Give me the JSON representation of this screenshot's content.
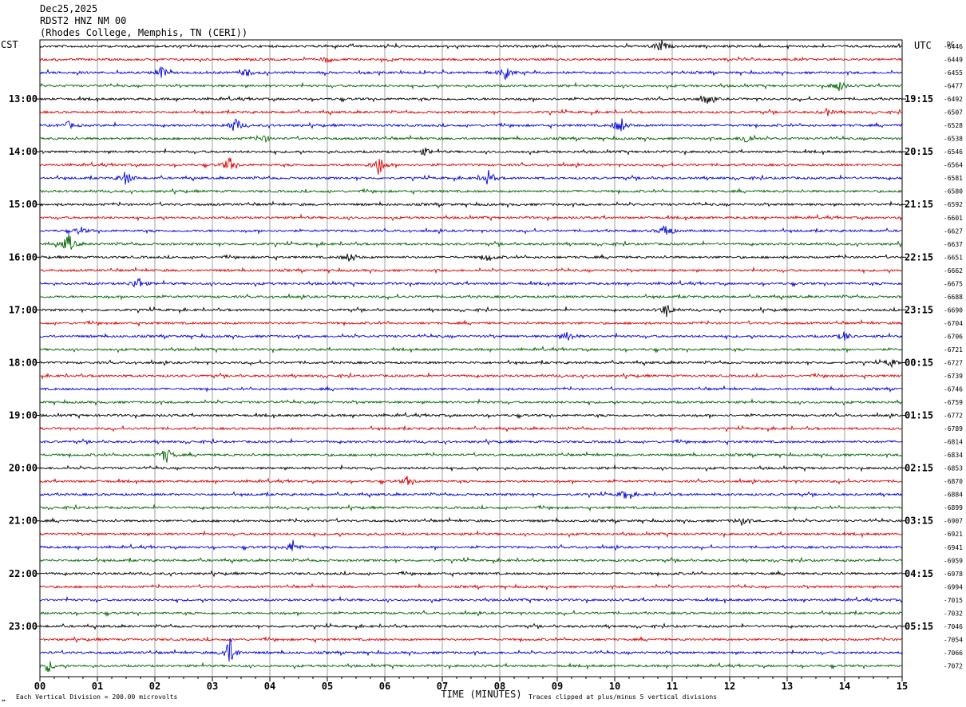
{
  "header": {
    "date": "Dec25,2025",
    "station": "RDST2 HNZ NM 00",
    "location": "(Rhodes College, Memphis, TN (CERI))"
  },
  "footer": {
    "scale_note": "Each Vertical Division =  200.00 microvolts",
    "clip_note": "Traces clipped at plus/minus 5 vertical divisions"
  },
  "chart_data": {
    "type": "line",
    "title": "",
    "xlabel": "TIME (MINUTES)",
    "x_ticks": [
      "00",
      "01",
      "02",
      "03",
      "04",
      "05",
      "06",
      "07",
      "08",
      "09",
      "10",
      "11",
      "12",
      "13",
      "14",
      "15"
    ],
    "xlim": [
      0,
      15
    ],
    "left_axis_label": "CST",
    "right_axis_label": "UTC",
    "dc_label": "DC",
    "left_hour_labels": [
      "13:00",
      "14:00",
      "15:00",
      "16:00",
      "17:00",
      "18:00",
      "19:00",
      "20:00",
      "21:00",
      "22:00",
      "23:00"
    ],
    "right_hour_labels": [
      "19:15",
      "20:15",
      "21:15",
      "22:15",
      "23:15",
      "00:15",
      "01:15",
      "02:15",
      "03:15",
      "04:15",
      "05:15"
    ],
    "trace_colors": [
      "#000000",
      "#dd0000",
      "#0000dd",
      "#006400"
    ],
    "dc_offsets": [
      -6446,
      -6449,
      -6455,
      -6477,
      -6492,
      -6507,
      -6528,
      -6538,
      -6546,
      -6564,
      -6581,
      -6580,
      -6592,
      -6601,
      -6627,
      -6637,
      -6651,
      -6662,
      -6675,
      -6688,
      -6690,
      -6704,
      -6706,
      -6721,
      -6727,
      -6739,
      -6746,
      -6759,
      -6772,
      -6789,
      -6814,
      -6834,
      -6853,
      -6870,
      -6884,
      -6899,
      -6907,
      -6921,
      -6941,
      -6959,
      -6978,
      -6994,
      -7015,
      -7032,
      -7046,
      -7054,
      -7066,
      -7072
    ],
    "events": [
      {
        "trace": 0,
        "minute": 10.8,
        "amp": 1.0
      },
      {
        "trace": 1,
        "minute": 5.0,
        "amp": 0.5
      },
      {
        "trace": 2,
        "minute": 2.1,
        "amp": 1.0
      },
      {
        "trace": 2,
        "minute": 8.1,
        "amp": 0.9
      },
      {
        "trace": 2,
        "minute": 3.6,
        "amp": 0.6
      },
      {
        "trace": 3,
        "minute": 13.9,
        "amp": 0.9
      },
      {
        "trace": 4,
        "minute": 11.6,
        "amp": 0.7
      },
      {
        "trace": 5,
        "minute": 13.7,
        "amp": 0.5
      },
      {
        "trace": 6,
        "minute": 3.4,
        "amp": 1.1
      },
      {
        "trace": 6,
        "minute": 10.1,
        "amp": 1.3
      },
      {
        "trace": 6,
        "minute": 0.5,
        "amp": 0.5
      },
      {
        "trace": 7,
        "minute": 12.3,
        "amp": 0.9
      },
      {
        "trace": 7,
        "minute": 3.9,
        "amp": 0.5
      },
      {
        "trace": 8,
        "minute": 6.7,
        "amp": 0.5
      },
      {
        "trace": 9,
        "minute": 5.9,
        "amp": 1.6
      },
      {
        "trace": 9,
        "minute": 3.3,
        "amp": 1.1
      },
      {
        "trace": 10,
        "minute": 1.5,
        "amp": 1.1
      },
      {
        "trace": 10,
        "minute": 7.8,
        "amp": 1.1
      },
      {
        "trace": 14,
        "minute": 10.9,
        "amp": 1.2
      },
      {
        "trace": 14,
        "minute": 0.7,
        "amp": 0.6
      },
      {
        "trace": 15,
        "minute": 0.5,
        "amp": 1.5
      },
      {
        "trace": 16,
        "minute": 5.4,
        "amp": 0.8
      },
      {
        "trace": 16,
        "minute": 7.8,
        "amp": 0.6
      },
      {
        "trace": 18,
        "minute": 1.7,
        "amp": 1.0
      },
      {
        "trace": 20,
        "minute": 10.9,
        "amp": 1.0
      },
      {
        "trace": 22,
        "minute": 9.2,
        "amp": 0.8
      },
      {
        "trace": 22,
        "minute": 14.0,
        "amp": 0.7
      },
      {
        "trace": 24,
        "minute": 14.8,
        "amp": 0.6
      },
      {
        "trace": 31,
        "minute": 2.2,
        "amp": 1.2
      },
      {
        "trace": 33,
        "minute": 6.4,
        "amp": 0.7
      },
      {
        "trace": 34,
        "minute": 10.2,
        "amp": 0.8
      },
      {
        "trace": 36,
        "minute": 12.2,
        "amp": 0.6
      },
      {
        "trace": 38,
        "minute": 4.4,
        "amp": 1.0
      },
      {
        "trace": 46,
        "minute": 3.3,
        "amp": 2.2
      },
      {
        "trace": 47,
        "minute": 0.15,
        "amp": 0.9
      }
    ],
    "grid": true
  }
}
